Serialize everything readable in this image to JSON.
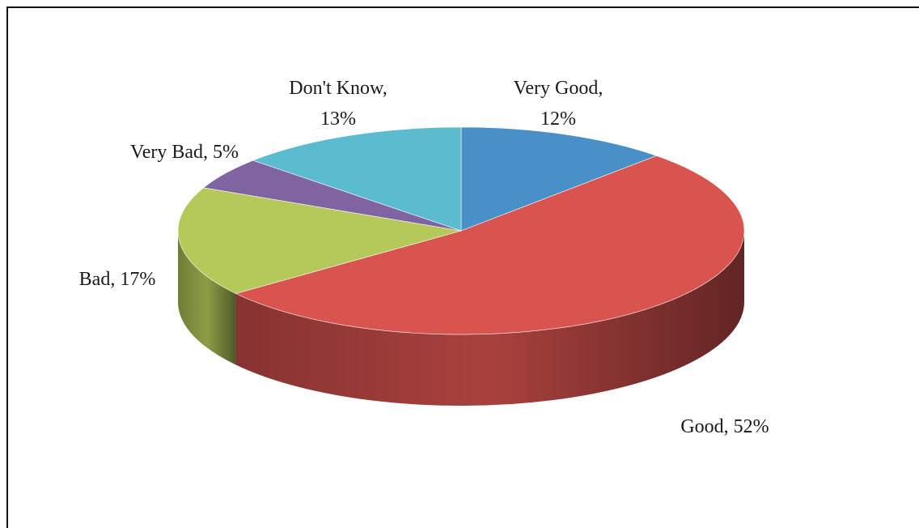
{
  "chart_data": {
    "type": "pie",
    "three_d": true,
    "slices": [
      {
        "name": "Very Good",
        "value": 12,
        "label_lines": [
          "Very Good,",
          "12%"
        ],
        "color": "#4a90c8"
      },
      {
        "name": "Good",
        "value": 52,
        "label_lines": [
          "Good, 52%"
        ],
        "color": "#d9534f"
      },
      {
        "name": "Bad",
        "value": 17,
        "label_lines": [
          "Bad, 17%"
        ],
        "color": "#b5c95a"
      },
      {
        "name": "Very Bad",
        "value": 5,
        "label_lines": [
          "Very Bad, 5%"
        ],
        "color": "#8064a2"
      },
      {
        "name": "Don't Know",
        "value": 13,
        "label_lines": [
          "Don't Know,",
          "13%"
        ],
        "color": "#5bbccf"
      }
    ],
    "start_angle": "12 o'clock",
    "direction": "clockwise",
    "legend": "none"
  }
}
